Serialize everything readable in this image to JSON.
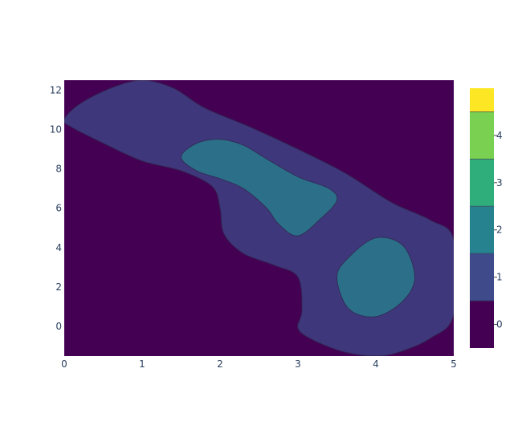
{
  "chart_data": {
    "type": "contour",
    "title": "",
    "xlabel": "",
    "ylabel": "",
    "xlim": [
      0,
      5
    ],
    "ylim": [
      -1.5,
      12.5
    ],
    "x_ticks": [
      {
        "value": 0,
        "label": "0"
      },
      {
        "value": 1,
        "label": "1"
      },
      {
        "value": 2,
        "label": "2"
      },
      {
        "value": 3,
        "label": "3"
      },
      {
        "value": 4,
        "label": "4"
      },
      {
        "value": 5,
        "label": "5"
      }
    ],
    "y_ticks": [
      {
        "value": 0,
        "label": "0"
      },
      {
        "value": 2,
        "label": "2"
      },
      {
        "value": 4,
        "label": "4"
      },
      {
        "value": 6,
        "label": "6"
      },
      {
        "value": 8,
        "label": "8"
      },
      {
        "value": 10,
        "label": "10"
      },
      {
        "value": 12,
        "label": "12"
      }
    ],
    "grid": false,
    "colorscale": "Viridis",
    "colorbar": {
      "placement": "right",
      "range": [
        -0.5,
        4.5
      ],
      "ticks": [
        {
          "value": 0,
          "label": "0"
        },
        {
          "value": 1,
          "label": "1"
        },
        {
          "value": 2,
          "label": "2"
        },
        {
          "value": 3,
          "label": "3"
        },
        {
          "value": 4,
          "label": "4"
        }
      ],
      "bands": [
        {
          "from": -0.5,
          "to": 0.5,
          "color": "#440154"
        },
        {
          "from": 0.5,
          "to": 1.5,
          "color": "#3e4a89"
        },
        {
          "from": 1.5,
          "to": 2.5,
          "color": "#26828e"
        },
        {
          "from": 2.5,
          "to": 3.5,
          "color": "#2fae7c"
        },
        {
          "from": 3.5,
          "to": 4.5,
          "color": "#7ad151"
        },
        {
          "from": 4.5,
          "to": 5.0,
          "color": "#fde725"
        }
      ]
    },
    "regions": [
      {
        "name": "background-level-0",
        "level": 0,
        "color": "#440154",
        "points": [
          [
            0,
            -1.5
          ],
          [
            5,
            -1.5
          ],
          [
            5,
            12.5
          ],
          [
            0,
            12.5
          ]
        ]
      },
      {
        "name": "level-1-band",
        "level": 1,
        "color": "#3e4a89",
        "points": [
          [
            0,
            10.5
          ],
          [
            0.2,
            11.3
          ],
          [
            0.6,
            12.1
          ],
          [
            1.0,
            12.5
          ],
          [
            1.4,
            12.1
          ],
          [
            1.8,
            11.1
          ],
          [
            2.4,
            10.1
          ],
          [
            3.0,
            9.0
          ],
          [
            3.6,
            7.8
          ],
          [
            4.2,
            6.3
          ],
          [
            4.7,
            5.4
          ],
          [
            5.0,
            4.4
          ],
          [
            5.0,
            0.6
          ],
          [
            4.7,
            -0.6
          ],
          [
            4.3,
            -1.3
          ],
          [
            4.0,
            -1.5
          ],
          [
            3.6,
            -1.3
          ],
          [
            3.2,
            -0.7
          ],
          [
            3.0,
            -0.1
          ],
          [
            3.05,
            0.8
          ],
          [
            3.0,
            2.5
          ],
          [
            2.7,
            3.1
          ],
          [
            2.3,
            3.7
          ],
          [
            2.05,
            4.7
          ],
          [
            2.0,
            6.0
          ],
          [
            1.9,
            7.1
          ],
          [
            1.5,
            7.9
          ],
          [
            1.0,
            8.4
          ],
          [
            0.5,
            9.3
          ],
          [
            0.1,
            10.1
          ]
        ]
      },
      {
        "name": "level-2-upper-island",
        "level": 2,
        "color": "#26828e",
        "points": [
          [
            1.5,
            8.6
          ],
          [
            1.7,
            9.3
          ],
          [
            2.0,
            9.5
          ],
          [
            2.3,
            9.2
          ],
          [
            2.6,
            8.5
          ],
          [
            3.0,
            7.6
          ],
          [
            3.4,
            7.0
          ],
          [
            3.5,
            6.4
          ],
          [
            3.3,
            5.5
          ],
          [
            3.0,
            4.6
          ],
          [
            2.75,
            5.2
          ],
          [
            2.6,
            6.0
          ],
          [
            2.3,
            7.0
          ],
          [
            2.0,
            7.5
          ],
          [
            1.7,
            7.9
          ]
        ]
      },
      {
        "name": "level-2-lower-island",
        "level": 2,
        "color": "#26828e",
        "points": [
          [
            3.5,
            2.5
          ],
          [
            3.65,
            3.5
          ],
          [
            4.0,
            4.5
          ],
          [
            4.35,
            4.1
          ],
          [
            4.5,
            2.5
          ],
          [
            4.35,
            1.3
          ],
          [
            4.0,
            0.5
          ],
          [
            3.65,
            0.9
          ]
        ]
      }
    ]
  }
}
